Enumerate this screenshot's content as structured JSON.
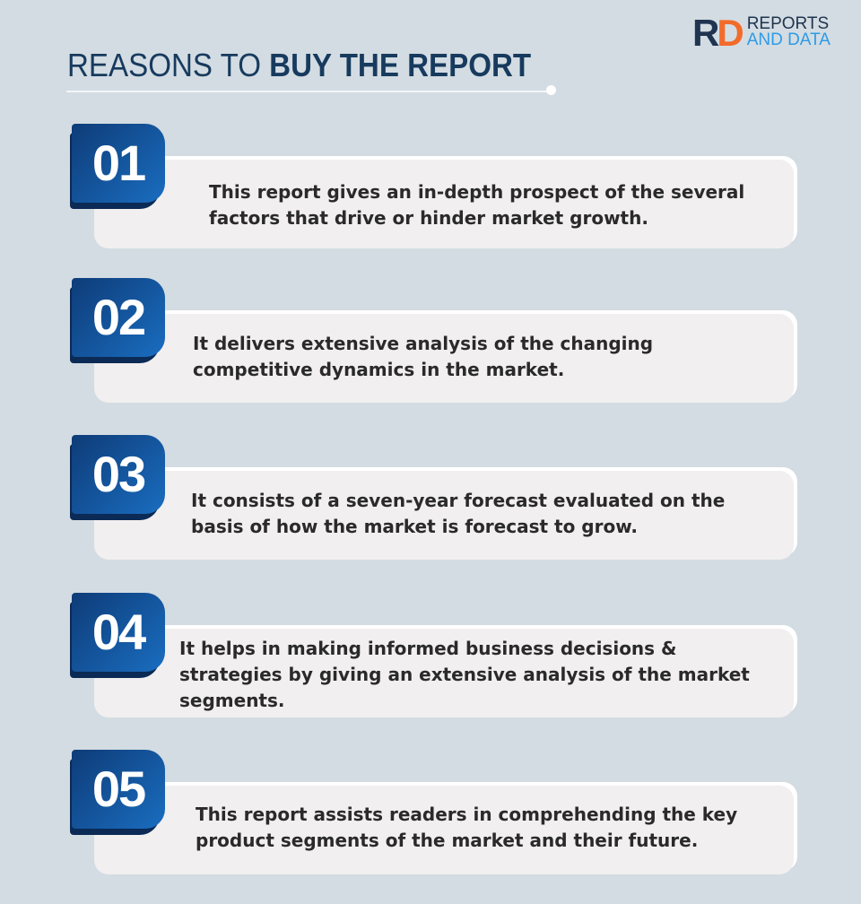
{
  "logo": {
    "mark_r": "R",
    "mark_d": "D",
    "line1": "REPORTS",
    "line2": "AND DATA"
  },
  "header": {
    "title_light": "REASONS TO ",
    "title_bold": "BUY THE REPORT"
  },
  "items": [
    {
      "number": "01",
      "text": "This report gives an in-depth prospect of the several factors that drive or hinder market growth."
    },
    {
      "number": "02",
      "text": "It delivers extensive analysis of the changing competitive dynamics in the market."
    },
    {
      "number": "03",
      "text": "It consists of a seven-year forecast evaluated on the basis of how the market is forecast to grow."
    },
    {
      "number": "04",
      "text": "It helps in making informed business decisions & strategies by giving an extensive analysis of the market segments."
    },
    {
      "number": "05",
      "text": "This report assists readers in comprehending the key product segments of the market and their future."
    }
  ],
  "colors": {
    "background": "#d3dce2",
    "badge": "#1a6dc0",
    "title": "#173a5e",
    "logo_accent": "#f26b2a"
  }
}
